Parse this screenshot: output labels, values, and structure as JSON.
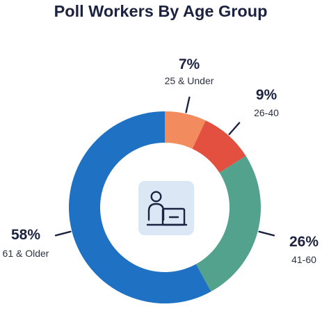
{
  "chart_data": {
    "type": "pie",
    "title": "Poll Workers By Age Group",
    "categories": [
      "25 & Under",
      "26-40",
      "41-60",
      "61 & Older"
    ],
    "values": [
      7,
      9,
      26,
      58
    ],
    "value_labels": [
      "7%",
      "9%",
      "26%",
      "58%"
    ],
    "colors": [
      "#f28b5e",
      "#e4503f",
      "#52a28d",
      "#1f71c4"
    ],
    "center_icon": "poll-worker-desk-icon",
    "legend": "none"
  }
}
